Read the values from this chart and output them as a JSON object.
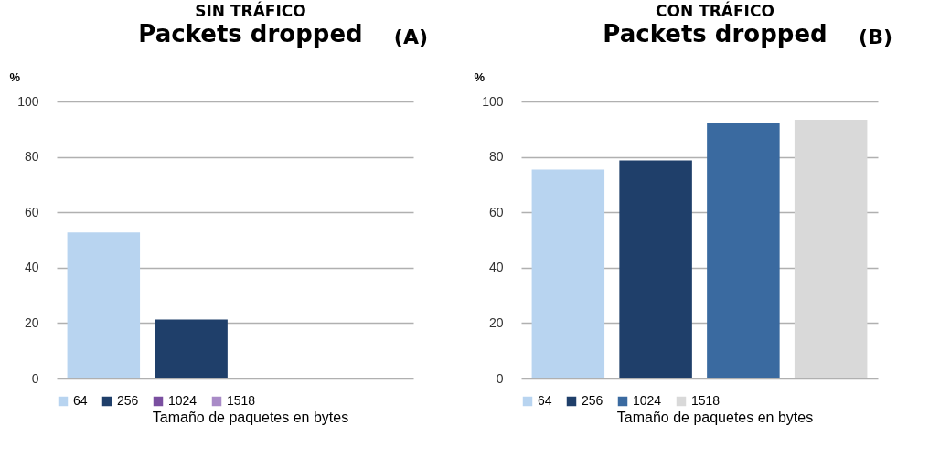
{
  "chart_data": [
    {
      "type": "bar",
      "title": "SIN TRÁFICO",
      "subtitle": "Packets dropped",
      "annotations": [
        "(A)"
      ],
      "ylabel": "%",
      "xlabel": "Tamaño de paquetes en bytes",
      "categories": [
        null
      ],
      "ylim": [
        0,
        100
      ],
      "yticks": [
        0,
        20,
        40,
        60,
        80,
        100
      ],
      "grid": "y",
      "legend": "bottom",
      "tick_labels": "y",
      "series": [
        {
          "name": "64",
          "color": "#b8d4f0",
          "values": [
            52.7
          ]
        },
        {
          "name": "256",
          "color": "#1f3f6a",
          "values": [
            21.3
          ]
        },
        {
          "name": "1024",
          "color": "#7a4fa0",
          "values": [
            0
          ]
        },
        {
          "name": "1518",
          "color": "#a98bc7",
          "values": [
            0
          ]
        }
      ]
    },
    {
      "type": "bar",
      "title": "CON TRÁFICO",
      "subtitle": "Packets dropped",
      "annotations": [
        "(B)"
      ],
      "ylabel": "%",
      "xlabel": "Tamaño de paquetes en bytes",
      "categories": [
        null
      ],
      "ylim": [
        0,
        100
      ],
      "yticks": [
        0,
        20,
        40,
        60,
        80,
        100
      ],
      "grid": "y",
      "legend": "bottom",
      "tick_labels": "y",
      "series": [
        {
          "name": "64",
          "color": "#b8d4f0",
          "values": [
            75.4
          ]
        },
        {
          "name": "256",
          "color": "#1f3f6a",
          "values": [
            78.7
          ]
        },
        {
          "name": "1024",
          "color": "#3a6aa0",
          "values": [
            92.1
          ]
        },
        {
          "name": "1518",
          "color": "#d9d9d9",
          "values": [
            93.4
          ]
        }
      ]
    }
  ]
}
